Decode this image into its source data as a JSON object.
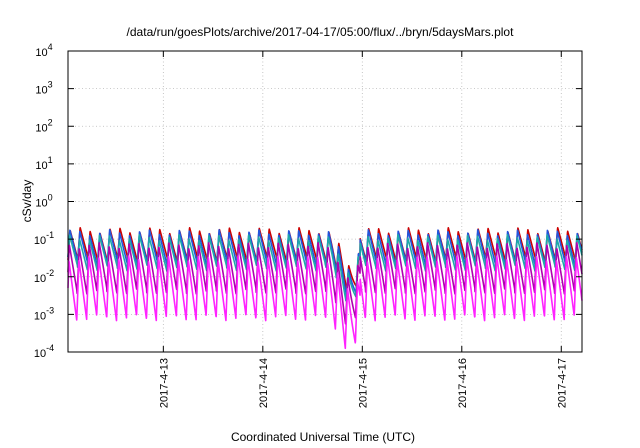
{
  "chart_data": {
    "type": "line",
    "title": "/data/run/goesPlots/archive/2017-04-17/05:00/flux/../bryn/5daysMars.plot",
    "xlabel": "Coordinated Universal Time (UTC)",
    "ylabel": "cSv/day",
    "yscale": "log",
    "ylim": [
      0.0001,
      10000
    ],
    "xlim": [
      "2017-04-12 01:00",
      "2017-04-17 05:00"
    ],
    "x_ticks": [
      "2017-4-13",
      "2017-4-14",
      "2017-4-15",
      "2017-4-16",
      "2017-4-17"
    ],
    "y_ticks": [
      {
        "base": "10",
        "exp": "-4"
      },
      {
        "base": "10",
        "exp": "-3"
      },
      {
        "base": "10",
        "exp": "-2"
      },
      {
        "base": "10",
        "exp": "-1"
      },
      {
        "base": "10",
        "exp": "0"
      },
      {
        "base": "10",
        "exp": "1"
      },
      {
        "base": "10",
        "exp": "2"
      },
      {
        "base": "10",
        "exp": "3"
      },
      {
        "base": "10",
        "exp": "4"
      }
    ],
    "grid": true,
    "legend": "none",
    "sawtooth_period_hours": 2.4,
    "dip_time": "2017-04-14 22:00",
    "series": [
      {
        "color": "#cc0000",
        "peak": 0.17,
        "trough": 0.028
      },
      {
        "color": "#2255dd",
        "peak": 0.15,
        "trough": 0.022
      },
      {
        "color": "#1fa9a9",
        "peak": 0.11,
        "trough": 0.017
      },
      {
        "color": "#b000b0",
        "peak": 0.07,
        "trough": 0.004
      },
      {
        "color": "#ff22ff",
        "peak": 0.03,
        "trough": 0.0008
      }
    ]
  }
}
